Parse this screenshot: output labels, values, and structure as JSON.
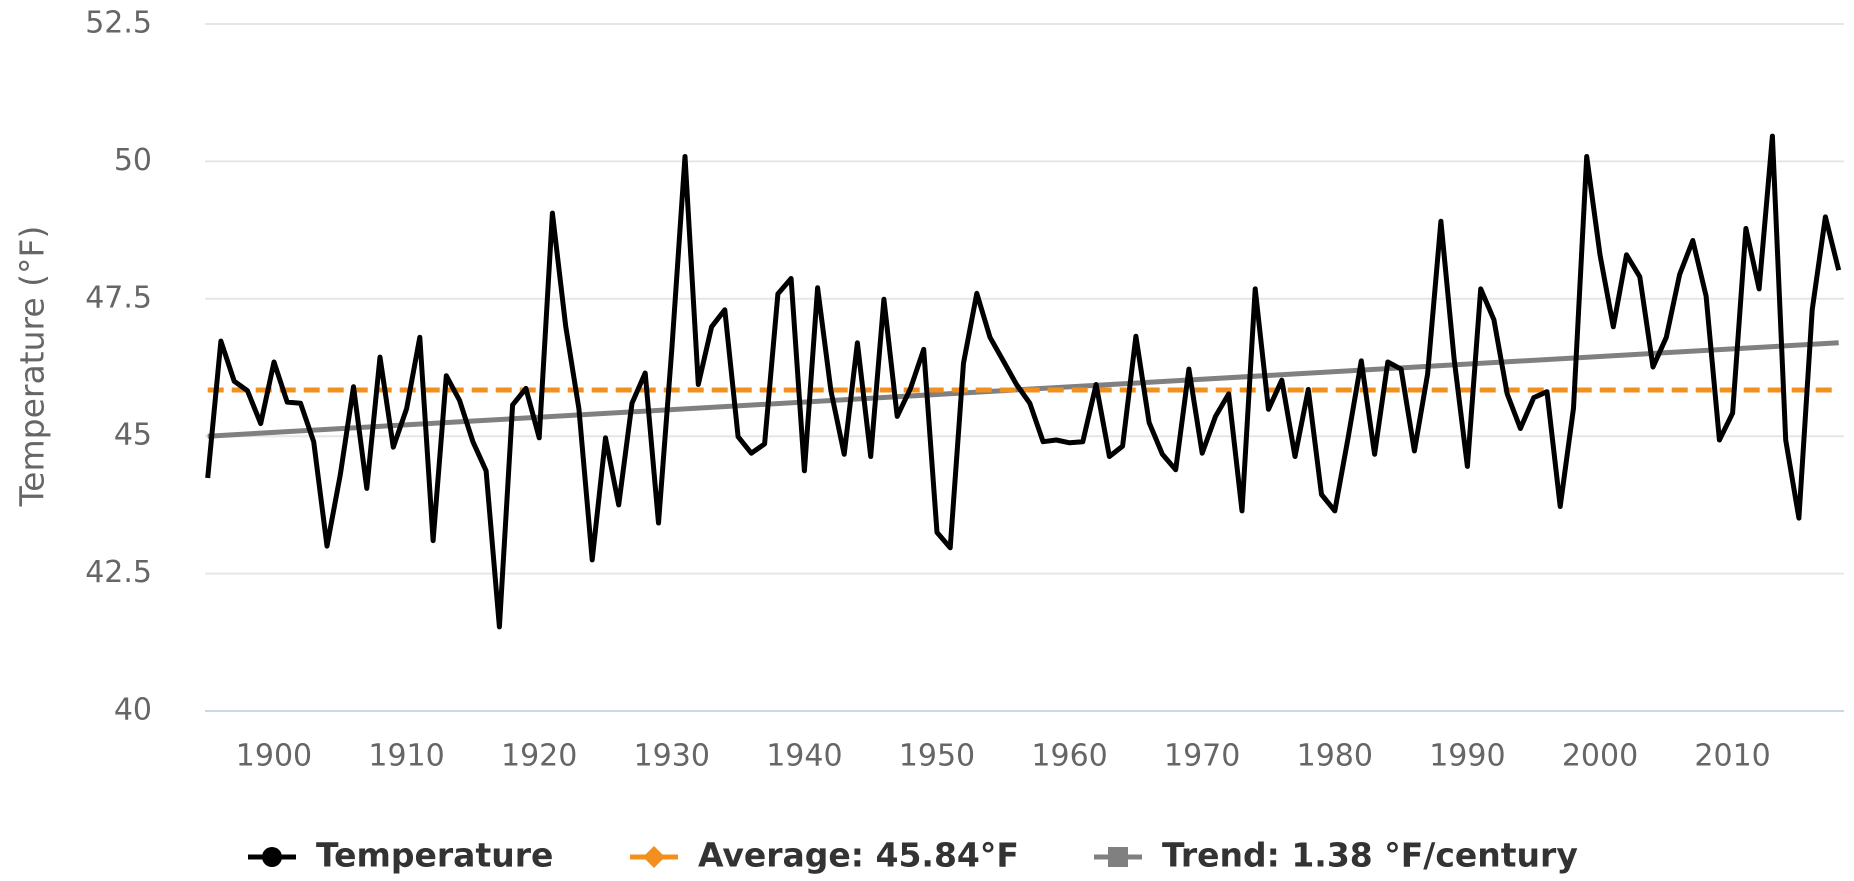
{
  "chart_data": {
    "type": "line",
    "y_label": "Temperature (°F)",
    "x": [
      1895,
      1896,
      1897,
      1898,
      1899,
      1900,
      1901,
      1902,
      1903,
      1904,
      1905,
      1906,
      1907,
      1908,
      1909,
      1910,
      1911,
      1912,
      1913,
      1914,
      1915,
      1916,
      1917,
      1918,
      1919,
      1920,
      1921,
      1922,
      1923,
      1924,
      1925,
      1926,
      1927,
      1928,
      1929,
      1930,
      1931,
      1932,
      1933,
      1934,
      1935,
      1936,
      1937,
      1938,
      1939,
      1940,
      1941,
      1942,
      1943,
      1944,
      1945,
      1946,
      1947,
      1948,
      1949,
      1950,
      1951,
      1952,
      1953,
      1954,
      1955,
      1956,
      1957,
      1958,
      1959,
      1960,
      1961,
      1962,
      1963,
      1964,
      1965,
      1966,
      1967,
      1968,
      1969,
      1970,
      1971,
      1972,
      1973,
      1974,
      1975,
      1976,
      1977,
      1978,
      1979,
      1980,
      1981,
      1982,
      1983,
      1984,
      1985,
      1986,
      1987,
      1988,
      1989,
      1990,
      1991,
      1992,
      1993,
      1994,
      1995,
      1996,
      1997,
      1998,
      1999,
      2000,
      2001,
      2002,
      2003,
      2004,
      2005,
      2006,
      2007,
      2008,
      2009,
      2010,
      2011,
      2012,
      2013,
      2014,
      2015,
      2016,
      2017,
      2018
    ],
    "series": [
      {
        "name": "Temperature",
        "color": "#000000",
        "marker": "circle",
        "values": [
          44.24,
          46.73,
          46.0,
          45.83,
          45.23,
          46.35,
          45.62,
          45.6,
          44.9,
          43.0,
          44.3,
          45.9,
          44.05,
          46.44,
          44.8,
          45.5,
          46.8,
          43.1,
          46.1,
          45.65,
          44.9,
          44.37,
          41.53,
          45.57,
          45.87,
          44.97,
          49.06,
          47.0,
          45.5,
          42.75,
          44.97,
          43.75,
          45.6,
          46.15,
          43.42,
          46.58,
          50.09,
          45.94,
          46.99,
          47.3,
          44.99,
          44.69,
          44.86,
          47.59,
          47.87,
          44.37,
          47.7,
          45.83,
          44.67,
          46.7,
          44.63,
          47.49,
          45.36,
          45.87,
          46.58,
          43.25,
          42.97,
          46.33,
          47.6,
          46.8,
          46.37,
          45.94,
          45.6,
          44.9,
          44.93,
          44.88,
          44.9,
          45.94,
          44.63,
          44.82,
          46.82,
          45.25,
          44.67,
          44.39,
          46.22,
          44.69,
          45.36,
          45.77,
          43.64,
          47.68,
          45.49,
          46.02,
          44.63,
          45.85,
          43.94,
          43.64,
          44.97,
          46.37,
          44.67,
          46.35,
          46.22,
          44.73,
          46.13,
          48.91,
          46.41,
          44.45,
          47.68,
          47.12,
          45.77,
          45.14,
          45.7,
          45.81,
          43.72,
          45.51,
          50.09,
          48.3,
          46.99,
          48.3,
          47.9,
          46.26,
          46.8,
          47.94,
          48.56,
          47.55,
          44.93,
          45.42,
          48.78,
          47.68,
          50.46,
          44.93,
          43.51,
          47.3,
          48.99,
          48.02
        ]
      },
      {
        "name": "Average: 45.84°F",
        "color": "#f28f1e",
        "marker": "diamond",
        "dashed": true,
        "x": [
          1895,
          2018
        ],
        "values": [
          45.84,
          45.84
        ]
      },
      {
        "name": "Trend: 1.38 °F/century",
        "color": "#808080",
        "marker": "square",
        "x": [
          1895,
          2018
        ],
        "values": [
          45.0,
          46.7
        ]
      }
    ],
    "xlim": [
      1894.8,
      2018.4
    ],
    "xticks": [
      1900,
      1910,
      1920,
      1930,
      1940,
      1950,
      1960,
      1970,
      1980,
      1990,
      2000,
      2010
    ],
    "ylim": [
      40,
      52.5
    ],
    "yticks": [
      40,
      42.5,
      45,
      47.5,
      50,
      52.5
    ],
    "grid": true,
    "legend": "bottom"
  }
}
